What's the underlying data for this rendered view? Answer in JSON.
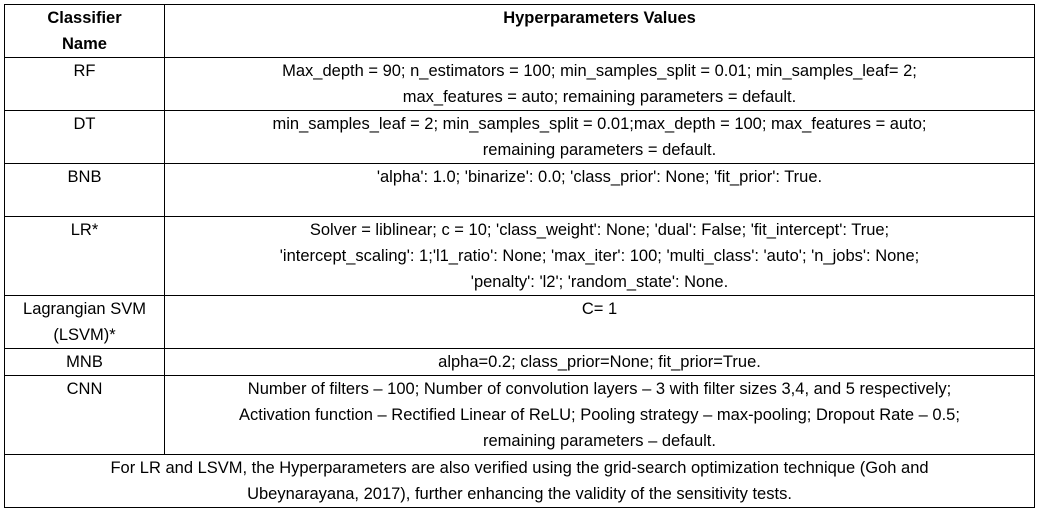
{
  "table": {
    "headers": {
      "name_line1": "Classifier",
      "name_line2": "Name",
      "values": "Hyperparameters Values"
    },
    "rows": [
      {
        "name": [
          "RF"
        ],
        "values": [
          "Max_depth = 90; n_estimators = 100; min_samples_split = 0.01; min_samples_leaf= 2;",
          "max_features = auto; remaining parameters = default."
        ]
      },
      {
        "name": [
          "DT"
        ],
        "values": [
          "min_samples_leaf = 2; min_samples_split = 0.01;max_depth = 100; max_features = auto;",
          "remaining parameters = default."
        ]
      },
      {
        "name": [
          "BNB"
        ],
        "values": [
          "'alpha': 1.0; 'binarize': 0.0; 'class_prior': None; 'fit_prior': True."
        ]
      },
      {
        "name": [
          "LR*"
        ],
        "values": [
          "Solver = liblinear; c = 10; 'class_weight': None; 'dual': False; 'fit_intercept': True;",
          "'intercept_scaling': 1;'l1_ratio': None; 'max_iter': 100; 'multi_class': 'auto'; 'n_jobs': None;",
          "'penalty': 'l2'; 'random_state': None."
        ]
      },
      {
        "name": [
          "Lagrangian SVM",
          "(LSVM)*"
        ],
        "values": [
          "C= 1"
        ]
      },
      {
        "name": [
          "MNB"
        ],
        "values": [
          "alpha=0.2; class_prior=None; fit_prior=True."
        ]
      },
      {
        "name": [
          "CNN"
        ],
        "values": [
          "Number of filters – 100; Number of convolution layers – 3 with filter sizes 3,4, and 5 respectively;",
          "Activation function – Rectified Linear of ReLU; Pooling strategy – max-pooling; Dropout Rate – 0.5;",
          "remaining parameters – default."
        ]
      }
    ],
    "footnote": [
      "For LR and LSVM, the Hyperparameters are also verified using the grid-search optimization technique (Goh and",
      "Ubeynarayana, 2017), further enhancing the validity of the sensitivity tests."
    ]
  }
}
